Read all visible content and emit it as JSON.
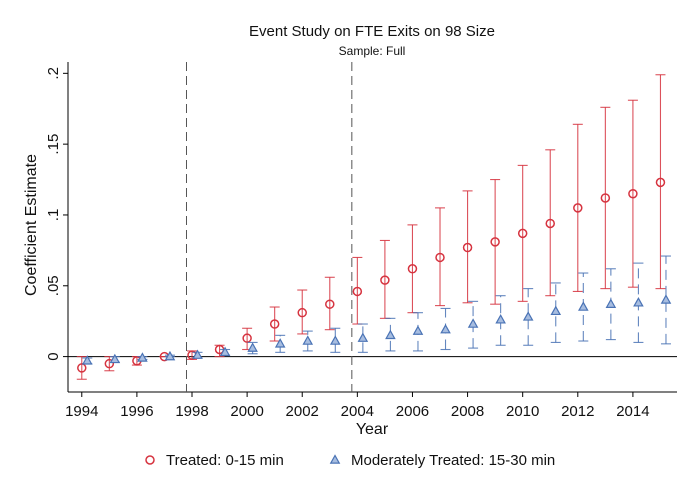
{
  "chart_data": {
    "type": "scatter",
    "title": "Event Study on FTE Exits on 98 Size",
    "subtitle": "Sample: Full",
    "xlabel": "Year",
    "ylabel": "Coefficient Estimate",
    "xlim": [
      1993.5,
      2015.6
    ],
    "ylim": [
      -0.025,
      0.208
    ],
    "x_ticks": [
      1994,
      1996,
      1998,
      2000,
      2002,
      2004,
      2006,
      2008,
      2010,
      2012,
      2014
    ],
    "y_ticks": [
      0,
      0.05,
      0.1,
      0.15,
      0.2
    ],
    "x_tick_labels": [
      "1994",
      "1996",
      "1998",
      "2000",
      "2002",
      "2004",
      "2006",
      "2008",
      "2010",
      "2012",
      "2014"
    ],
    "y_tick_labels": [
      "0",
      ".05",
      ".1",
      ".15",
      ".2"
    ],
    "reference_lines": {
      "vertical": [
        1997.8,
        2003.8
      ],
      "horizontal": [
        0
      ]
    },
    "grid": false,
    "legend_position": "bottom",
    "series": [
      {
        "name": "Treated: 0-15 min",
        "color": "#d6333f",
        "marker": "circle",
        "error_style": "solid",
        "x": [
          1994,
          1995,
          1996,
          1997,
          1998,
          1999,
          2000,
          2001,
          2002,
          2003,
          2004,
          2005,
          2006,
          2007,
          2008,
          2009,
          2010,
          2011,
          2012,
          2013,
          2014,
          2015
        ],
        "y": [
          -0.008,
          -0.005,
          -0.003,
          0.0,
          0.001,
          0.005,
          0.013,
          0.023,
          0.031,
          0.037,
          0.046,
          0.054,
          0.062,
          0.07,
          0.077,
          0.081,
          0.087,
          0.094,
          0.105,
          0.112,
          0.115,
          0.123
        ],
        "ci_low": [
          -0.016,
          -0.01,
          -0.006,
          0.0,
          -0.002,
          0.0,
          0.005,
          0.011,
          0.016,
          0.019,
          0.023,
          0.027,
          0.031,
          0.036,
          0.038,
          0.037,
          0.039,
          0.043,
          0.046,
          0.048,
          0.049,
          0.048
        ],
        "ci_high": [
          0.0,
          0.0,
          0.0,
          0.0,
          0.004,
          0.008,
          0.02,
          0.035,
          0.047,
          0.056,
          0.07,
          0.082,
          0.093,
          0.105,
          0.117,
          0.125,
          0.135,
          0.146,
          0.164,
          0.176,
          0.181,
          0.199
        ]
      },
      {
        "name": "Moderately Treated: 15-30 min",
        "color": "#4a73b5",
        "marker": "triangle",
        "error_style": "dashed",
        "x": [
          1994.2,
          1995.2,
          1996.2,
          1997.2,
          1998.2,
          1999.2,
          2000.2,
          2001.2,
          2002.2,
          2003.2,
          2004.2,
          2005.2,
          2006.2,
          2007.2,
          2008.2,
          2009.2,
          2010.2,
          2011.2,
          2012.2,
          2013.2,
          2014.2,
          2015.2
        ],
        "y": [
          -0.003,
          -0.002,
          -0.001,
          0.0,
          0.001,
          0.003,
          0.006,
          0.009,
          0.011,
          0.011,
          0.013,
          0.015,
          0.018,
          0.019,
          0.023,
          0.026,
          0.028,
          0.032,
          0.035,
          0.037,
          0.038,
          0.04
        ],
        "ci_low": [
          -0.005,
          -0.004,
          -0.002,
          0.0,
          -0.001,
          0.001,
          0.002,
          0.003,
          0.004,
          0.003,
          0.003,
          0.004,
          0.004,
          0.005,
          0.006,
          0.008,
          0.008,
          0.01,
          0.011,
          0.012,
          0.01,
          0.009
        ],
        "ci_high": [
          -0.001,
          0.0,
          0.0,
          0.001,
          0.003,
          0.005,
          0.01,
          0.015,
          0.018,
          0.02,
          0.023,
          0.027,
          0.031,
          0.034,
          0.039,
          0.043,
          0.048,
          0.052,
          0.059,
          0.062,
          0.066,
          0.071
        ]
      }
    ]
  }
}
